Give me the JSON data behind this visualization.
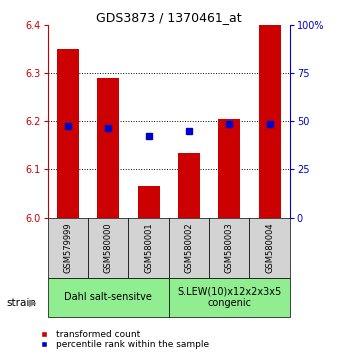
{
  "title": "GDS3873 / 1370461_at",
  "samples": [
    "GSM579999",
    "GSM580000",
    "GSM580001",
    "GSM580002",
    "GSM580003",
    "GSM580004"
  ],
  "red_values": [
    6.35,
    6.29,
    6.065,
    6.135,
    6.205,
    6.4
  ],
  "blue_values": [
    6.19,
    6.185,
    6.17,
    6.18,
    6.195,
    6.195
  ],
  "ylim_left": [
    6.0,
    6.4
  ],
  "ylim_right": [
    0,
    100
  ],
  "yticks_left": [
    6.0,
    6.1,
    6.2,
    6.3,
    6.4
  ],
  "yticks_right": [
    0,
    25,
    50,
    75,
    100
  ],
  "ytick_labels_right": [
    "0",
    "25",
    "50",
    "75",
    "100%"
  ],
  "grid_lines": [
    6.1,
    6.2,
    6.3
  ],
  "group1_label": "Dahl salt-sensitve",
  "group2_label": "S.LEW(10)x12x2x3x5\ncongenic",
  "group1_indices": [
    0,
    1,
    2
  ],
  "group2_indices": [
    3,
    4,
    5
  ],
  "group_color": "#90EE90",
  "sample_bg_color": "#d3d3d3",
  "bar_bottom": 6.0,
  "red_color": "#cc0000",
  "blue_color": "#0000cc",
  "ylabel_left_color": "#cc0000",
  "ylabel_right_color": "#0000cc",
  "legend_red_label": "transformed count",
  "legend_blue_label": "percentile rank within the sample",
  "strain_label": "strain",
  "fig_bg": "#ffffff",
  "bar_width": 0.55,
  "title_fontsize": 9,
  "tick_fontsize": 7,
  "label_fontsize": 6,
  "group_fontsize": 7,
  "legend_fontsize": 6.5
}
